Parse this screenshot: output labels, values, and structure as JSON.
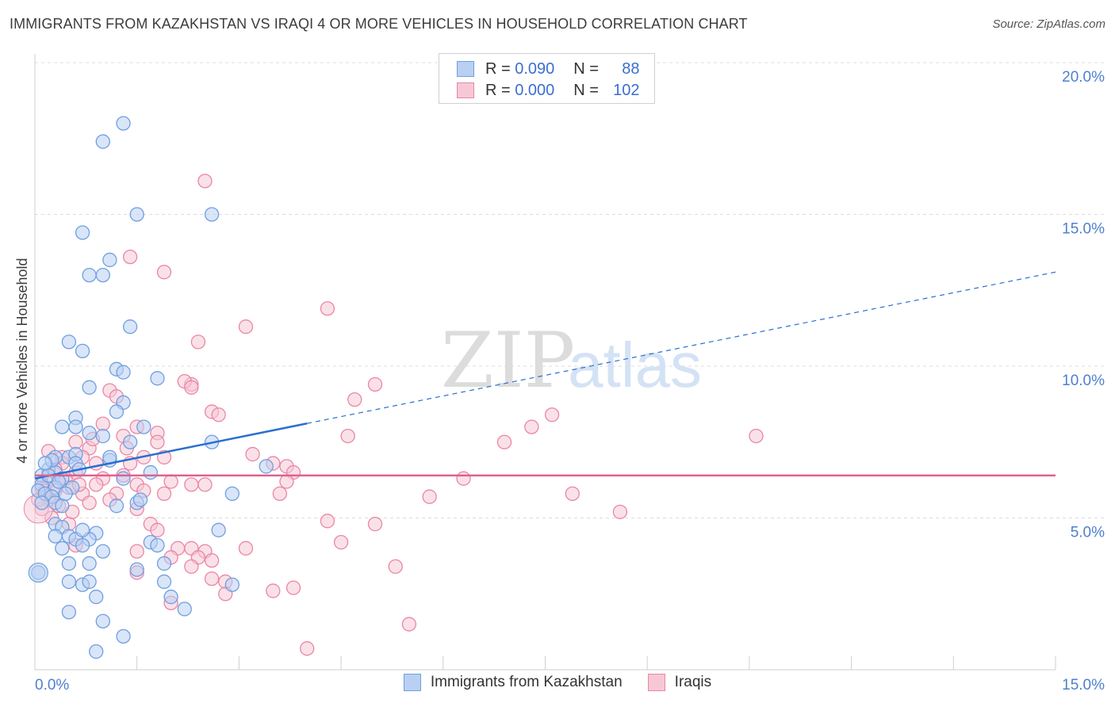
{
  "header": {
    "title": "IMMIGRANTS FROM KAZAKHSTAN VS IRAQI 4 OR MORE VEHICLES IN HOUSEHOLD CORRELATION CHART",
    "source": "Source: ZipAtlas.com"
  },
  "legend": {
    "r_label": "R =",
    "n_label": "N =",
    "kazakhstan": {
      "r": "0.090",
      "n": "88"
    },
    "iraqis": {
      "r": "0.000",
      "n": "102"
    }
  },
  "watermark": {
    "zip": "ZIP",
    "atlas": "atlas"
  },
  "colors": {
    "blue": "#6f9fe0",
    "blue_fill": "#b9d0f2",
    "blue_line": "#2a6fd0",
    "pink": "#ea86a6",
    "pink_fill": "#f6c8d6",
    "pink_line": "#e0608e",
    "tick": "#4f7fcf"
  },
  "chart_data": {
    "type": "scatter",
    "title": "IMMIGRANTS FROM KAZAKHSTAN VS IRAQI 4 OR MORE VEHICLES IN HOUSEHOLD CORRELATION CHART",
    "xlabel": "",
    "ylabel": "4 or more Vehicles in Household",
    "xlim": [
      0,
      15
    ],
    "ylim": [
      0,
      20
    ],
    "x_ticks": [
      "0.0%",
      "15.0%"
    ],
    "y_ticks": [
      "5.0%",
      "10.0%",
      "15.0%",
      "20.0%"
    ],
    "y_tick_values": [
      5,
      10,
      15,
      20
    ],
    "grid": true,
    "legend_position": "top-center",
    "series": [
      {
        "name": "Immigrants from Kazakhstan",
        "trend": {
          "x0": 0,
          "y0": 6.3,
          "x1": 15,
          "y1": 13.1,
          "solid_until": 4
        },
        "points": [
          [
            1.3,
            18.0
          ],
          [
            1.0,
            17.4
          ],
          [
            1.5,
            15.0
          ],
          [
            2.6,
            15.0
          ],
          [
            0.7,
            14.4
          ],
          [
            1.1,
            13.5
          ],
          [
            0.8,
            13.0
          ],
          [
            1.0,
            13.0
          ],
          [
            1.4,
            11.3
          ],
          [
            0.5,
            10.8
          ],
          [
            0.7,
            10.5
          ],
          [
            1.2,
            9.9
          ],
          [
            1.3,
            9.8
          ],
          [
            1.8,
            9.6
          ],
          [
            0.8,
            9.3
          ],
          [
            1.3,
            8.8
          ],
          [
            1.2,
            8.5
          ],
          [
            0.6,
            8.3
          ],
          [
            0.4,
            8.0
          ],
          [
            0.6,
            8.0
          ],
          [
            1.6,
            8.0
          ],
          [
            0.8,
            7.8
          ],
          [
            1.4,
            7.5
          ],
          [
            2.6,
            7.5
          ],
          [
            0.3,
            7.0
          ],
          [
            0.5,
            7.0
          ],
          [
            0.6,
            7.1
          ],
          [
            1.1,
            6.9
          ],
          [
            3.4,
            6.7
          ],
          [
            0.2,
            6.6
          ],
          [
            0.3,
            6.5
          ],
          [
            0.1,
            6.4
          ],
          [
            0.4,
            6.3
          ],
          [
            1.3,
            6.3
          ],
          [
            1.7,
            6.5
          ],
          [
            0.1,
            6.1
          ],
          [
            0.3,
            6.0
          ],
          [
            0.55,
            6.0
          ],
          [
            0.05,
            5.9
          ],
          [
            0.15,
            5.8
          ],
          [
            0.25,
            5.7
          ],
          [
            0.3,
            5.5
          ],
          [
            0.4,
            5.4
          ],
          [
            1.2,
            5.4
          ],
          [
            1.5,
            5.5
          ],
          [
            2.9,
            5.8
          ],
          [
            0.3,
            4.8
          ],
          [
            0.4,
            4.7
          ],
          [
            0.3,
            4.4
          ],
          [
            0.5,
            4.4
          ],
          [
            0.9,
            4.5
          ],
          [
            2.7,
            4.6
          ],
          [
            0.6,
            4.3
          ],
          [
            0.8,
            4.3
          ],
          [
            1.7,
            4.2
          ],
          [
            0.4,
            4.0
          ],
          [
            0.7,
            4.1
          ],
          [
            1.0,
            3.9
          ],
          [
            1.8,
            4.1
          ],
          [
            0.5,
            3.5
          ],
          [
            0.8,
            3.5
          ],
          [
            1.5,
            3.3
          ],
          [
            1.9,
            3.5
          ],
          [
            0.05,
            3.2
          ],
          [
            0.5,
            2.9
          ],
          [
            0.7,
            2.8
          ],
          [
            0.8,
            2.9
          ],
          [
            1.9,
            2.9
          ],
          [
            2.9,
            2.8
          ],
          [
            0.9,
            2.4
          ],
          [
            2.0,
            2.4
          ],
          [
            0.5,
            1.9
          ],
          [
            2.2,
            2.0
          ],
          [
            1.0,
            1.6
          ],
          [
            1.3,
            1.1
          ],
          [
            0.9,
            0.6
          ],
          [
            0.6,
            6.8
          ],
          [
            0.2,
            6.4
          ],
          [
            0.45,
            5.8
          ],
          [
            1.0,
            7.7
          ],
          [
            0.1,
            5.5
          ],
          [
            0.35,
            6.2
          ],
          [
            1.55,
            5.6
          ],
          [
            0.65,
            6.6
          ],
          [
            0.25,
            6.9
          ],
          [
            0.7,
            4.6
          ],
          [
            1.1,
            7.0
          ],
          [
            0.15,
            6.8
          ]
        ]
      },
      {
        "name": "Iraqis",
        "trend": {
          "x0": 0,
          "y0": 6.4,
          "x1": 15,
          "y1": 6.4
        },
        "points": [
          [
            2.5,
            16.1
          ],
          [
            1.4,
            13.6
          ],
          [
            1.9,
            13.1
          ],
          [
            4.3,
            11.9
          ],
          [
            3.1,
            11.3
          ],
          [
            2.4,
            10.8
          ],
          [
            5.0,
            9.4
          ],
          [
            2.3,
            9.4
          ],
          [
            2.2,
            9.5
          ],
          [
            2.3,
            9.3
          ],
          [
            1.1,
            9.2
          ],
          [
            1.2,
            9.0
          ],
          [
            4.7,
            8.9
          ],
          [
            2.6,
            8.5
          ],
          [
            2.7,
            8.4
          ],
          [
            7.6,
            8.4
          ],
          [
            1.0,
            8.1
          ],
          [
            1.5,
            8.0
          ],
          [
            7.3,
            8.0
          ],
          [
            10.6,
            7.7
          ],
          [
            4.6,
            7.7
          ],
          [
            1.3,
            7.7
          ],
          [
            1.8,
            7.8
          ],
          [
            0.6,
            7.5
          ],
          [
            1.8,
            7.5
          ],
          [
            6.9,
            7.5
          ],
          [
            0.8,
            7.3
          ],
          [
            0.7,
            7.0
          ],
          [
            1.6,
            7.0
          ],
          [
            1.9,
            7.0
          ],
          [
            3.2,
            7.1
          ],
          [
            0.4,
            7.0
          ],
          [
            0.2,
            7.2
          ],
          [
            0.4,
            6.8
          ],
          [
            0.9,
            6.8
          ],
          [
            1.4,
            6.8
          ],
          [
            3.5,
            6.8
          ],
          [
            3.7,
            6.7
          ],
          [
            0.6,
            6.5
          ],
          [
            1.0,
            6.3
          ],
          [
            1.3,
            6.4
          ],
          [
            3.8,
            6.5
          ],
          [
            6.3,
            6.3
          ],
          [
            0.2,
            6.2
          ],
          [
            0.5,
            6.0
          ],
          [
            0.9,
            6.1
          ],
          [
            1.5,
            6.1
          ],
          [
            2.0,
            6.2
          ],
          [
            2.3,
            6.1
          ],
          [
            2.5,
            6.1
          ],
          [
            3.7,
            6.2
          ],
          [
            0.1,
            6.0
          ],
          [
            0.3,
            5.9
          ],
          [
            0.7,
            5.8
          ],
          [
            1.2,
            5.8
          ],
          [
            1.6,
            5.9
          ],
          [
            1.9,
            5.8
          ],
          [
            3.6,
            5.8
          ],
          [
            5.8,
            5.7
          ],
          [
            7.9,
            5.8
          ],
          [
            0.2,
            5.6
          ],
          [
            0.35,
            5.4
          ],
          [
            1.5,
            5.3
          ],
          [
            8.6,
            5.2
          ],
          [
            0.1,
            5.3
          ],
          [
            0.25,
            5.0
          ],
          [
            0.5,
            4.8
          ],
          [
            1.7,
            4.8
          ],
          [
            4.3,
            4.9
          ],
          [
            5.0,
            4.8
          ],
          [
            1.8,
            4.6
          ],
          [
            4.5,
            4.2
          ],
          [
            0.6,
            4.1
          ],
          [
            2.1,
            4.0
          ],
          [
            2.3,
            4.0
          ],
          [
            2.5,
            3.9
          ],
          [
            3.1,
            4.0
          ],
          [
            1.5,
            3.9
          ],
          [
            2.0,
            3.7
          ],
          [
            2.4,
            3.7
          ],
          [
            2.6,
            3.6
          ],
          [
            2.3,
            3.4
          ],
          [
            5.3,
            3.4
          ],
          [
            1.5,
            3.2
          ],
          [
            2.6,
            3.0
          ],
          [
            2.8,
            2.9
          ],
          [
            3.8,
            2.7
          ],
          [
            3.5,
            2.6
          ],
          [
            2.8,
            2.5
          ],
          [
            2.0,
            2.2
          ],
          [
            5.5,
            1.5
          ],
          [
            4.0,
            0.7
          ],
          [
            0.05,
            5.6
          ],
          [
            0.15,
            5.9
          ],
          [
            0.45,
            6.3
          ],
          [
            0.8,
            5.5
          ],
          [
            0.3,
            6.6
          ],
          [
            1.1,
            5.6
          ],
          [
            0.55,
            5.2
          ],
          [
            0.65,
            6.1
          ],
          [
            1.35,
            7.3
          ],
          [
            0.85,
            7.6
          ]
        ]
      }
    ]
  },
  "bottom_legend": {
    "kazakhstan": "Immigrants from Kazakhstan",
    "iraqis": "Iraqis"
  }
}
